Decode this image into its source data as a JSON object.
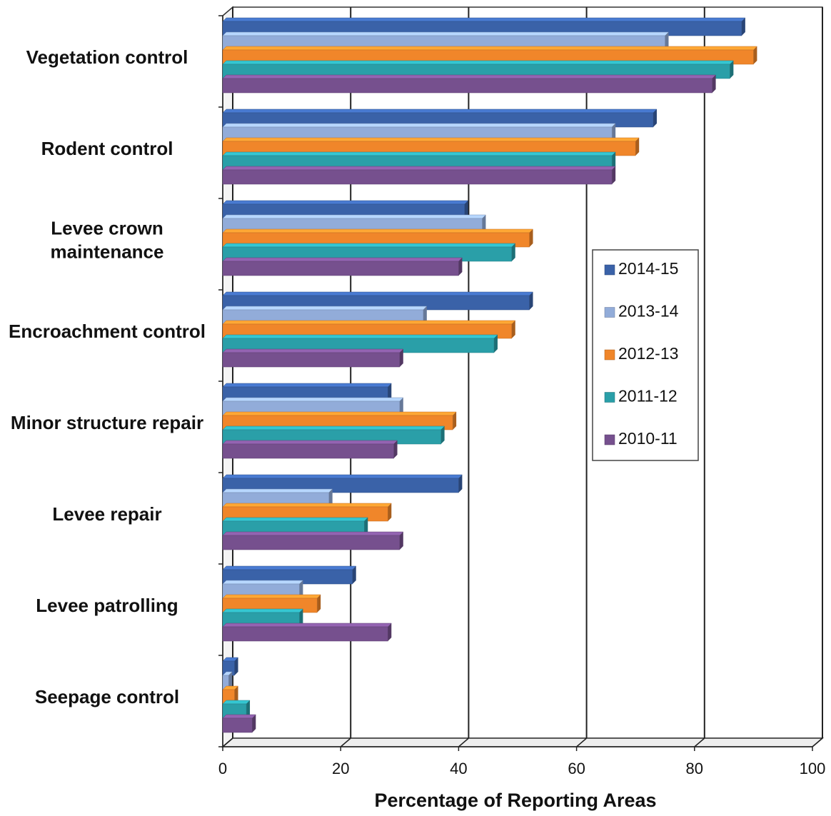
{
  "chart_data": {
    "type": "bar",
    "orientation": "horizontal",
    "x_label": "Percentage of Reporting Areas",
    "categories": [
      "Vegetation control",
      "Rodent control",
      "Levee crown maintenance",
      "Encroachment control",
      "Minor structure repair",
      "Levee repair",
      "Levee patrolling",
      "Seepage control"
    ],
    "series": [
      {
        "name": "2014-15",
        "color": "#3a62a8",
        "values": [
          88,
          73,
          41,
          52,
          28,
          40,
          22,
          2
        ]
      },
      {
        "name": "2013-14",
        "color": "#92acd9",
        "values": [
          75,
          66,
          44,
          34,
          30,
          18,
          13,
          1
        ]
      },
      {
        "name": "2012-13",
        "color": "#f0862a",
        "values": [
          90,
          70,
          52,
          49,
          39,
          28,
          16,
          2
        ]
      },
      {
        "name": "2011-12",
        "color": "#2a9fa8",
        "values": [
          86,
          66,
          49,
          46,
          37,
          24,
          13,
          4
        ]
      },
      {
        "name": "2010-11",
        "color": "#76508e",
        "values": [
          83,
          66,
          40,
          30,
          29,
          30,
          28,
          5
        ]
      }
    ],
    "xlim": [
      0,
      100
    ],
    "xticks": [
      0,
      20,
      40,
      60,
      80,
      100
    ],
    "grid": true,
    "legend": "right"
  }
}
